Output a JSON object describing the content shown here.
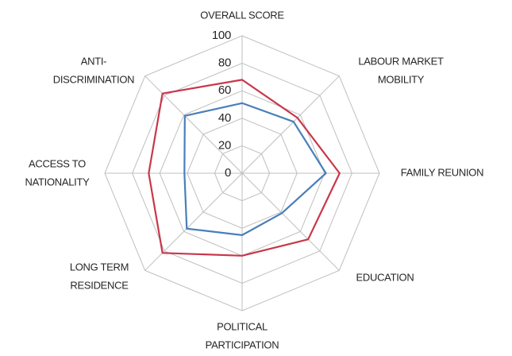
{
  "chart_data": {
    "type": "radar",
    "categories": [
      [
        "OVERALL SCORE"
      ],
      [
        "LABOUR MARKET",
        "MOBILITY"
      ],
      [
        "FAMILY REUNION"
      ],
      [
        "EDUCATION"
      ],
      [
        "POLITICAL",
        "PARTICIPATION"
      ],
      [
        "LONG TERM",
        "RESIDENCE"
      ],
      [
        "ACCESS TO",
        "NATIONALITY"
      ],
      [
        "ANTI-",
        "DISCRIMINATION"
      ]
    ],
    "series": [
      {
        "color": "#c8374a",
        "values": [
          68,
          57,
          71,
          68,
          60,
          82,
          68,
          82
        ]
      },
      {
        "color": "#4a7ebb",
        "values": [
          51,
          53,
          61,
          41,
          45,
          57,
          42,
          59
        ]
      }
    ],
    "rlim": [
      0,
      100
    ],
    "rticks": [
      0,
      20,
      40,
      60,
      80,
      100
    ],
    "grid": true
  }
}
